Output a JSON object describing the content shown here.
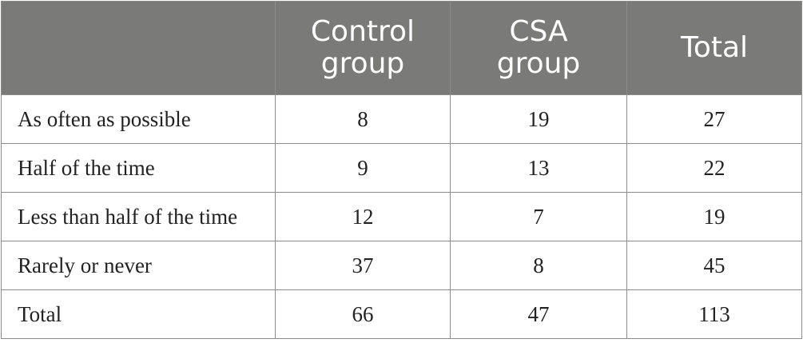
{
  "table": {
    "columns": [
      "",
      "Control\ngroup",
      "CSA\ngroup",
      "Total"
    ],
    "rows": [
      {
        "label": "As often as possible",
        "values": [
          "8",
          "19",
          "27"
        ]
      },
      {
        "label": "Half of the time",
        "values": [
          "9",
          "13",
          "22"
        ]
      },
      {
        "label": "Less than half of the time",
        "values": [
          "12",
          "7",
          "19"
        ]
      },
      {
        "label": "Rarely or never",
        "values": [
          "37",
          "8",
          "45"
        ]
      },
      {
        "label": "Total",
        "values": [
          "66",
          "47",
          "113"
        ]
      }
    ]
  },
  "colors": {
    "header_background": "#7a7a78",
    "header_text": "#ffffff",
    "border": "#8c8c8c",
    "body_text": "#222222"
  }
}
